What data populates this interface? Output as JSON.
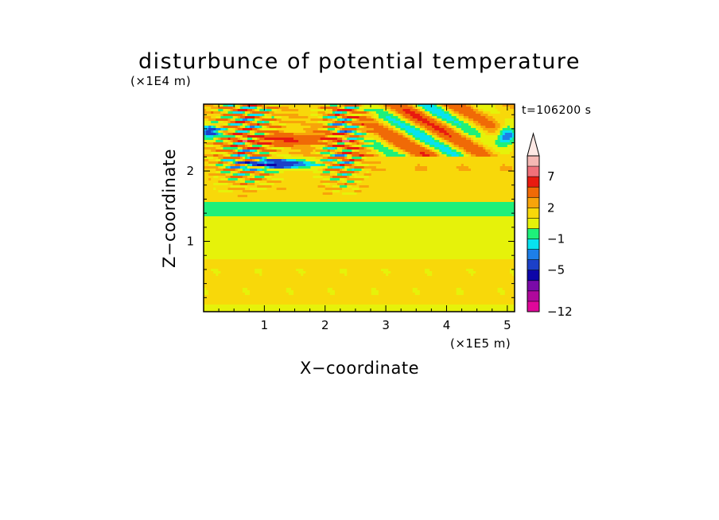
{
  "chart_data": {
    "type": "heatmap",
    "title": "disturbunce of potential temperature",
    "xlabel": "X−coordinate",
    "ylabel": "Z−coordinate",
    "x_unit": "(×1E5 m)",
    "y_unit": "(×1E4 m)",
    "time_label": "t=106200 s",
    "x_range": [
      0,
      5.12
    ],
    "y_range": [
      0,
      2.95
    ],
    "x_ticks": [
      1,
      2,
      3,
      4,
      5
    ],
    "x_tick_labels": [
      "1",
      "2",
      "3",
      "4",
      "5"
    ],
    "y_ticks": [
      1,
      2
    ],
    "y_tick_labels": [
      "1",
      "2"
    ],
    "colorbar": {
      "levels": [
        -12,
        -11,
        -9,
        -7,
        -5,
        -3,
        -2,
        -1,
        0,
        1,
        2,
        3,
        5,
        7,
        9,
        11
      ],
      "labels": [
        {
          "value": 7,
          "text": "7"
        },
        {
          "value": 2,
          "text": "2"
        },
        {
          "value": -1,
          "text": "−1"
        },
        {
          "value": -5,
          "text": "−5"
        },
        {
          "value": -12,
          "text": "−12"
        }
      ],
      "colors": [
        "#e0079a",
        "#b0089c",
        "#7a0aa8",
        "#0d05a8",
        "#1c40c8",
        "#1d7fe8",
        "#08e2f0",
        "#1ef07a",
        "#e6f20a",
        "#f8d80a",
        "#f8a40a",
        "#f06a06",
        "#e81a10",
        "#f0707a",
        "#f5b8b4"
      ],
      "extend": "max"
    },
    "field_description_values": {
      "layers": [
        {
          "z_from": 0.0,
          "z_to": 0.1,
          "value": 0.4
        },
        {
          "z_from": 0.1,
          "z_to": 0.75,
          "value": 1.3
        },
        {
          "z_from": 0.75,
          "z_to": 1.35,
          "value": 0.4
        },
        {
          "z_from": 1.35,
          "z_to": 1.55,
          "value": -0.5
        },
        {
          "z_from": 1.55,
          "z_to": 2.0,
          "value": 1.5
        },
        {
          "z_from": 2.0,
          "z_to": 2.95,
          "value": 1.8
        }
      ]
    }
  }
}
